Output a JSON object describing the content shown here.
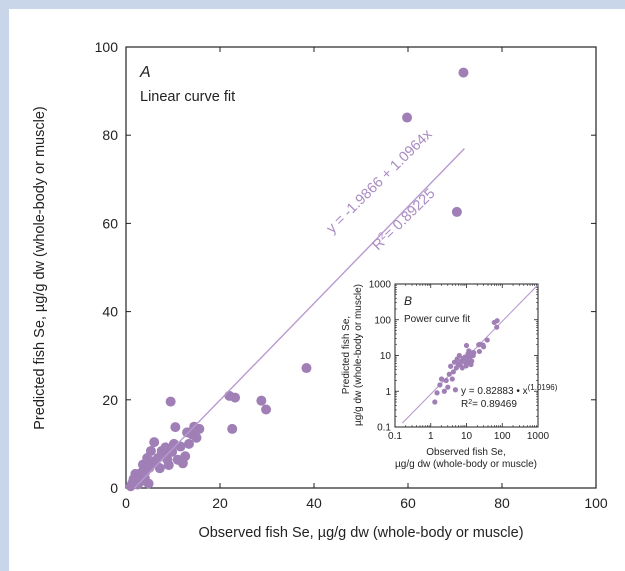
{
  "colors": {
    "background": "#c9d6ea",
    "point": "#9f7fb5",
    "fit_line": "#b99ad0",
    "fit_text": "#a98bc2"
  },
  "chart_data": [
    {
      "type": "scatter",
      "panel_letter": "A",
      "subtitle": "Linear curve fit",
      "xlabel": "Observed fish Se, µg/g dw (whole-body or muscle)",
      "ylabel": "Predicted fish Se, µg/g dw (whole-body or muscle)",
      "xlim": [
        0,
        100
      ],
      "ylim": [
        0,
        100
      ],
      "xticks": [
        0,
        20,
        40,
        60,
        80,
        100
      ],
      "yticks": [
        0,
        20,
        40,
        60,
        80,
        100
      ],
      "grid": false,
      "fit": {
        "intercept": -1.9866,
        "slope": 1.0964,
        "x_range": [
          1.8,
          72
        ],
        "equation": "y = -1.9866 + 1.0964x",
        "r2_prefix": "R",
        "r2_sup": "2",
        "r2_value": "= 0.89225"
      },
      "points": [
        [
          1.0,
          0.4
        ],
        [
          1.3,
          1.0
        ],
        [
          1.6,
          2.0
        ],
        [
          2.0,
          3.2
        ],
        [
          2.5,
          0.8
        ],
        [
          2.8,
          2.6
        ],
        [
          3.0,
          1.4
        ],
        [
          3.3,
          3.5
        ],
        [
          3.6,
          5.3
        ],
        [
          4.0,
          2.3
        ],
        [
          4.2,
          3.8
        ],
        [
          4.5,
          6.8
        ],
        [
          4.8,
          1.0
        ],
        [
          5.0,
          4.6
        ],
        [
          5.3,
          8.4
        ],
        [
          5.6,
          6.0
        ],
        [
          6.0,
          10.4
        ],
        [
          6.3,
          5.6
        ],
        [
          6.8,
          6.8
        ],
        [
          7.2,
          4.5
        ],
        [
          7.6,
          8.4
        ],
        [
          8.0,
          7.6
        ],
        [
          8.4,
          9.2
        ],
        [
          8.8,
          6.4
        ],
        [
          9.1,
          5.2
        ],
        [
          9.5,
          19.6
        ],
        [
          9.8,
          8.2
        ],
        [
          10.2,
          10.0
        ],
        [
          10.5,
          13.8
        ],
        [
          11.0,
          6.4
        ],
        [
          11.6,
          9.4
        ],
        [
          12.1,
          5.6
        ],
        [
          12.6,
          7.2
        ],
        [
          13.0,
          12.6
        ],
        [
          13.4,
          10.0
        ],
        [
          14.0,
          12.2
        ],
        [
          14.5,
          13.9
        ],
        [
          15.0,
          11.4
        ],
        [
          15.6,
          13.4
        ],
        [
          22.0,
          20.9
        ],
        [
          22.6,
          13.4
        ],
        [
          23.2,
          20.5
        ],
        [
          28.8,
          19.8
        ],
        [
          29.8,
          17.8
        ],
        [
          38.4,
          27.2
        ],
        [
          59.8,
          84.0
        ],
        [
          70.4,
          62.6
        ],
        [
          71.8,
          94.2
        ]
      ]
    },
    {
      "type": "scatter",
      "panel_letter": "B",
      "subtitle": "Power curve fit",
      "xlabel_line1": "Observed fish Se,",
      "xlabel_line2": "µg/g dw (whole-body or muscle)",
      "ylabel_line1": "Predicted fish Se,",
      "ylabel_line2": "µg/g dw (whole-body or muscle)",
      "xscale": "log",
      "yscale": "log",
      "xlim": [
        0.1,
        1000
      ],
      "ylim": [
        0.1,
        1000
      ],
      "xtick_labels": [
        "0.1",
        "1",
        "10",
        "100",
        "1000"
      ],
      "ytick_labels": [
        "0.1",
        "1",
        "10",
        "100",
        "1000"
      ],
      "fit": {
        "coefficient": 0.82883,
        "exponent": 1.0196,
        "equation_prefix": "y = 0.82883 • x",
        "equation_exp": "(1.0196)",
        "r2_prefix": "R",
        "r2_sup": "2",
        "r2_value": "= 0.89469"
      },
      "points": [
        [
          1.3,
          0.5
        ],
        [
          1.5,
          0.9
        ],
        [
          1.8,
          1.5
        ],
        [
          2.0,
          2.2
        ],
        [
          2.4,
          1.0
        ],
        [
          2.7,
          2.0
        ],
        [
          3.0,
          1.3
        ],
        [
          3.3,
          3.0
        ],
        [
          3.6,
          5.0
        ],
        [
          4.0,
          2.2
        ],
        [
          4.3,
          3.5
        ],
        [
          4.6,
          6.5
        ],
        [
          4.9,
          1.1
        ],
        [
          5.2,
          4.5
        ],
        [
          5.5,
          8.0
        ],
        [
          5.9,
          5.8
        ],
        [
          6.3,
          10.0
        ],
        [
          6.7,
          5.4
        ],
        [
          7.1,
          6.8
        ],
        [
          7.6,
          4.5
        ],
        [
          8.0,
          8.2
        ],
        [
          8.5,
          7.5
        ],
        [
          9.0,
          9.0
        ],
        [
          9.4,
          6.2
        ],
        [
          9.8,
          5.1
        ],
        [
          10.0,
          19.0
        ],
        [
          10.5,
          8.0
        ],
        [
          11.0,
          11.0
        ],
        [
          11.6,
          13.5
        ],
        [
          12.2,
          6.4
        ],
        [
          12.8,
          9.2
        ],
        [
          13.4,
          5.6
        ],
        [
          14.0,
          7.0
        ],
        [
          14.6,
          12.0
        ],
        [
          15.4,
          10.0
        ],
        [
          16.0,
          12.0
        ],
        [
          22.0,
          20.0
        ],
        [
          23.0,
          13.0
        ],
        [
          24.0,
          20.5
        ],
        [
          29.0,
          19.5
        ],
        [
          30.0,
          17.5
        ],
        [
          38.0,
          27.0
        ],
        [
          60.0,
          84.0
        ],
        [
          70.0,
          62.0
        ],
        [
          72.0,
          94.0
        ]
      ]
    }
  ]
}
